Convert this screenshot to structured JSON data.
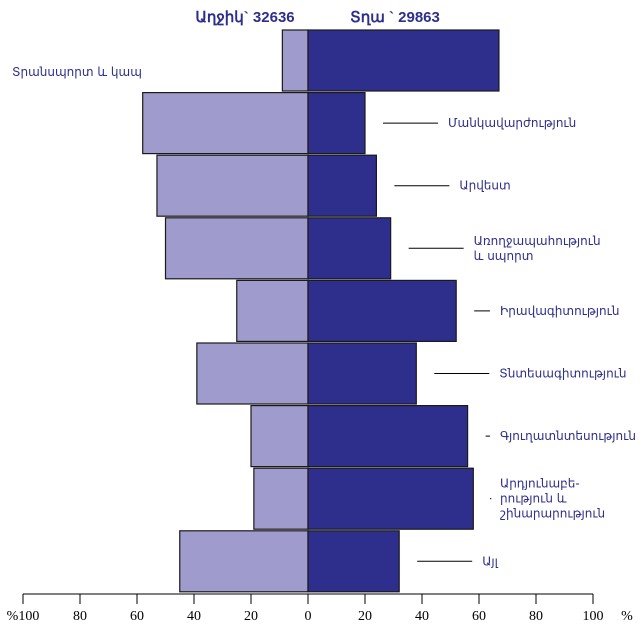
{
  "chart_data": {
    "type": "bar",
    "subtype": "population-pyramid",
    "headers": {
      "female": "Աղջիկ` 32636",
      "male": "Տղա ` 29863"
    },
    "categories": [
      [
        "Տրանսպորտ և կապ"
      ],
      [
        "Մանկավարժություն"
      ],
      [
        "Արվեստ"
      ],
      [
        "Առողջապահություն",
        "և սպորտ"
      ],
      [
        "Իրավագիտություն"
      ],
      [
        "Տնտեսագիտություն"
      ],
      [
        "Գյուղատնտեսություն"
      ],
      [
        "Արդյունաբե-",
        "րություն և",
        "շինարարություն"
      ],
      [
        "Այլ"
      ]
    ],
    "series": [
      {
        "key": "female",
        "values": [
          9,
          58,
          53,
          50,
          25,
          39,
          20,
          19,
          45
        ]
      },
      {
        "key": "male",
        "values": [
          67,
          20,
          24,
          29,
          52,
          38,
          56,
          58,
          32
        ]
      }
    ],
    "axis": {
      "ticks": [
        {
          "value": -100,
          "label": "%100"
        },
        {
          "value": -80,
          "label": "80"
        },
        {
          "value": -60,
          "label": "60"
        },
        {
          "value": -40,
          "label": "40"
        },
        {
          "value": -20,
          "label": "20"
        },
        {
          "value": 0,
          "label": "0"
        },
        {
          "value": 20,
          "label": "20"
        },
        {
          "value": 40,
          "label": "40"
        },
        {
          "value": 60,
          "label": "60"
        },
        {
          "value": 80,
          "label": "80"
        },
        {
          "value": 100,
          "label": "100"
        }
      ],
      "unit_label": "%",
      "range": [
        -100,
        100
      ]
    },
    "colors": {
      "female": "#9f9bcc",
      "male": "#2e2e8c",
      "text": "#2e2e8c",
      "axis": "#000000"
    },
    "grid": false
  }
}
